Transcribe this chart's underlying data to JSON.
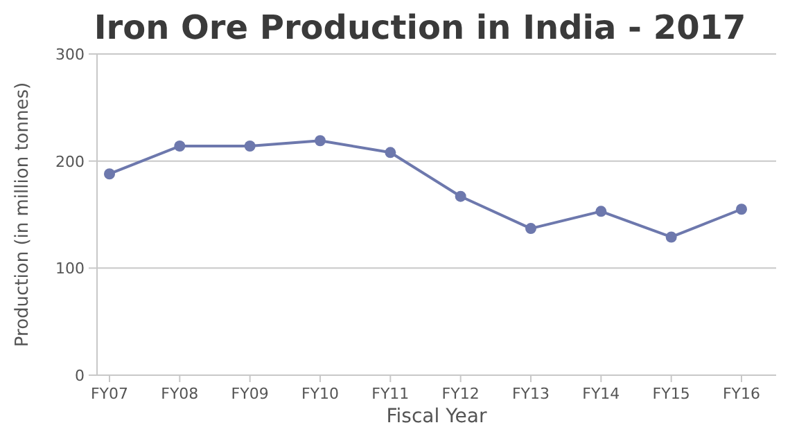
{
  "chart_data": {
    "type": "line",
    "title": "Iron Ore Production in India - 2017",
    "xlabel": "Fiscal Year",
    "ylabel": "Production (in million tonnes)",
    "categories": [
      "FY07",
      "FY08",
      "FY09",
      "FY10",
      "FY11",
      "FY12",
      "FY13",
      "FY14",
      "FY15",
      "FY16"
    ],
    "series": [
      {
        "color": "#6d78ad",
        "values": [
          188,
          214,
          214,
          219,
          208,
          167,
          137,
          153,
          129,
          155
        ]
      }
    ],
    "ylim": [
      0,
      300
    ],
    "yticks": [
      0,
      100,
      200,
      300
    ],
    "grid": "y",
    "marker": "circle",
    "line_style": "solid"
  }
}
